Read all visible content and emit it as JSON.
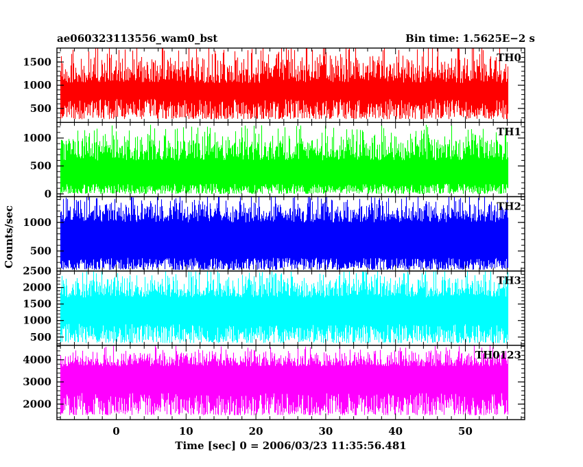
{
  "header": {
    "title": "ae060323113556_wam0_bst",
    "bin_time": "Bin time: 1.5625E−2 s"
  },
  "chart_data": {
    "type": "line",
    "xlabel": "Time [sec] 0 = 2006/03/23 11:35:56.481",
    "ylabel": "Counts/sec",
    "xlim": [
      -8.5,
      58.5
    ],
    "x_ticks": [
      0,
      10,
      20,
      30,
      40,
      50
    ],
    "x_minor_step": 2,
    "data_x_range": [
      -8,
      56
    ],
    "panels": [
      {
        "name": "TH0",
        "color": "#ff0000",
        "ylim": [
          200,
          1800
        ],
        "y_ticks": [
          500,
          1000,
          1500
        ],
        "y_minor_step": 100,
        "envelope": {
          "min_low": 270,
          "min_high": 700,
          "max_low": 1050,
          "max_high": 1800
        }
      },
      {
        "name": "TH1",
        "color": "#00ff00",
        "ylim": [
          -50,
          1280
        ],
        "y_ticks": [
          0,
          500,
          1000
        ],
        "y_minor_step": 100,
        "envelope": {
          "min_low": 0,
          "min_high": 180,
          "max_low": 600,
          "max_high": 1180
        }
      },
      {
        "name": "TH2",
        "color": "#0000ff",
        "ylim": [
          150,
          1450
        ],
        "y_ticks": [
          500,
          1000
        ],
        "y_minor_step": 100,
        "envelope": {
          "min_low": 170,
          "min_high": 380,
          "max_low": 1000,
          "max_high": 1450
        }
      },
      {
        "name": "TH3",
        "color": "#00ffff",
        "ylim": [
          250,
          2500
        ],
        "y_ticks": [
          500,
          1000,
          1500,
          2000,
          2500
        ],
        "y_minor_step": 100,
        "envelope": {
          "min_low": 320,
          "min_high": 900,
          "max_low": 1700,
          "max_high": 2500
        }
      },
      {
        "name": "TH0123",
        "color": "#ff00ff",
        "ylim": [
          1300,
          4650
        ],
        "y_ticks": [
          2000,
          3000,
          4000
        ],
        "y_minor_step": 200,
        "envelope": {
          "min_low": 1500,
          "min_high": 2500,
          "max_low": 3700,
          "max_high": 4450
        }
      }
    ]
  }
}
